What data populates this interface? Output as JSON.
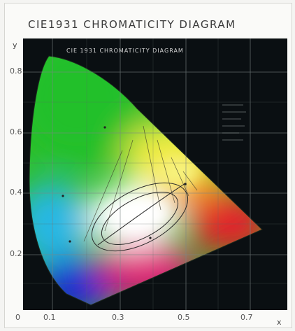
{
  "title": "CIE1931 CHROMATICITY DIAGRAM",
  "subtitle": "CIE 1931 CHROMATICITY DIAGRAM",
  "axis": {
    "y_label": "y",
    "x_label": "x",
    "y_ticks": [
      "0.8",
      "0.6",
      "0.4",
      "0.2"
    ],
    "x_ticks": [
      "0",
      "0.1",
      "0.3",
      "0.5",
      "0.7"
    ]
  },
  "colors": {
    "background": "#0a0f12",
    "grid": "#6f7a7a",
    "green": "#1fbf2a",
    "yellow": "#f4f04a",
    "red": "#e8202e",
    "blue": "#1a2bd6",
    "cyan": "#27b9e6",
    "magenta": "#e21a78"
  }
}
